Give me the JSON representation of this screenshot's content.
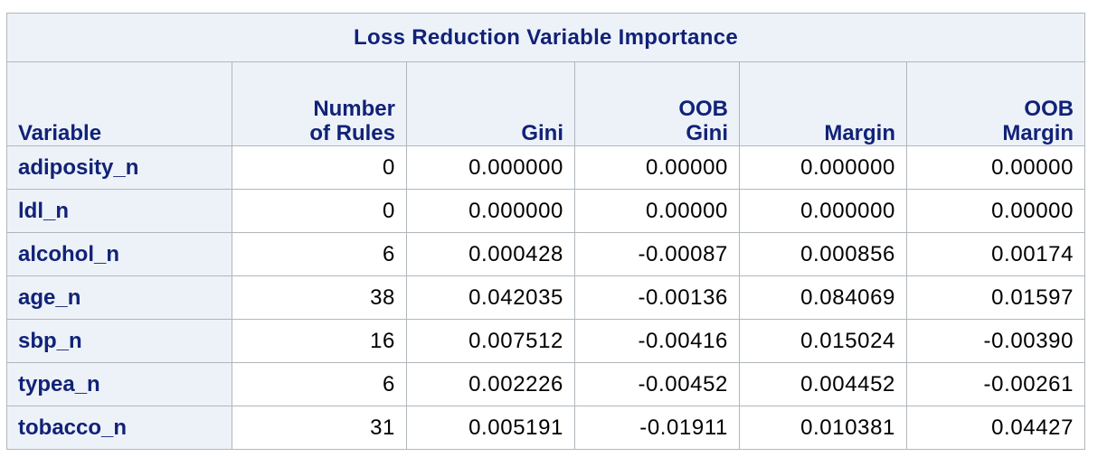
{
  "table": {
    "title": "Loss Reduction Variable Importance",
    "headers": {
      "variable": "Variable",
      "rules_line1": "Number",
      "rules_line2": "of Rules",
      "gini": "Gini",
      "oob_gini_line1": "OOB",
      "oob_gini_line2": "Gini",
      "margin": "Margin",
      "oob_margin_line1": "OOB",
      "oob_margin_line2": "Margin"
    },
    "rows": [
      {
        "variable": "adiposity_n",
        "rules": "0",
        "gini": "0.000000",
        "oob_gini": "0.00000",
        "margin": "0.000000",
        "oob_margin": "0.00000"
      },
      {
        "variable": "ldl_n",
        "rules": "0",
        "gini": "0.000000",
        "oob_gini": "0.00000",
        "margin": "0.000000",
        "oob_margin": "0.00000"
      },
      {
        "variable": "alcohol_n",
        "rules": "6",
        "gini": "0.000428",
        "oob_gini": "-0.00087",
        "margin": "0.000856",
        "oob_margin": "0.00174"
      },
      {
        "variable": "age_n",
        "rules": "38",
        "gini": "0.042035",
        "oob_gini": "-0.00136",
        "margin": "0.084069",
        "oob_margin": "0.01597"
      },
      {
        "variable": "sbp_n",
        "rules": "16",
        "gini": "0.007512",
        "oob_gini": "-0.00416",
        "margin": "0.015024",
        "oob_margin": "-0.00390"
      },
      {
        "variable": "typea_n",
        "rules": "6",
        "gini": "0.002226",
        "oob_gini": "-0.00452",
        "margin": "0.004452",
        "oob_margin": "-0.00261"
      },
      {
        "variable": "tobacco_n",
        "rules": "31",
        "gini": "0.005191",
        "oob_gini": "-0.01911",
        "margin": "0.010381",
        "oob_margin": "0.04427"
      }
    ]
  },
  "colors": {
    "header_bg": "#edf2f9",
    "header_text": "#112277",
    "border": "#b0b7bb",
    "cell_text": "#000000"
  }
}
